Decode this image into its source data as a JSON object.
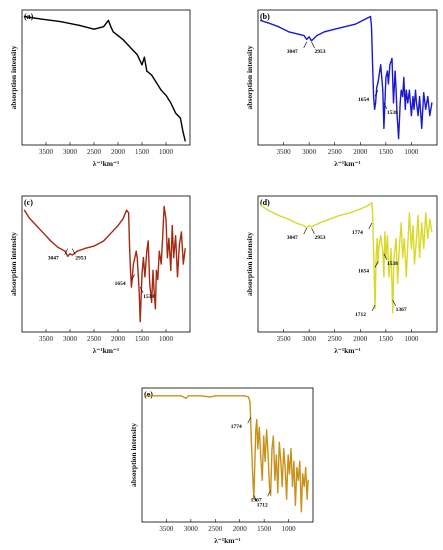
{
  "chart_data": [
    {
      "type": "line",
      "panel_label": "(a)",
      "xlabel": "λ⁻¹km⁻¹",
      "ylabel": "absorption intensity",
      "xlim": [
        4000,
        500
      ],
      "x_ticks": [
        "3500",
        "3000",
        "2500",
        "2000",
        "1500",
        "1000"
      ],
      "y_ticks": "none",
      "color": "#000000",
      "annotations": [],
      "x": [
        3950,
        3600,
        3200,
        2800,
        2500,
        2300,
        2200,
        2150,
        2100,
        2000,
        1900,
        1800,
        1700,
        1600,
        1500,
        1450,
        1400,
        1300,
        1200,
        1100,
        1000,
        900,
        800,
        700,
        650,
        600
      ],
      "y": [
        0.98,
        0.96,
        0.94,
        0.91,
        0.88,
        0.9,
        0.95,
        0.9,
        0.86,
        0.83,
        0.8,
        0.76,
        0.72,
        0.68,
        0.6,
        0.66,
        0.55,
        0.52,
        0.46,
        0.4,
        0.36,
        0.3,
        0.22,
        0.18,
        0.08,
        0.0
      ]
    },
    {
      "type": "line",
      "panel_label": "(b)",
      "xlabel": "λ⁻¹km⁻¹",
      "ylabel": "absorption intensity",
      "xlim": [
        4000,
        500
      ],
      "x_ticks": [
        "3500",
        "3000",
        "2500",
        "2000",
        "1500",
        "1000"
      ],
      "y_ticks": "none",
      "color": "#1a1acc",
      "annotations": [
        {
          "text": "3047",
          "x": 3047,
          "y": 0.78
        },
        {
          "text": "2953",
          "x": 2953,
          "y": 0.78
        },
        {
          "text": "1654",
          "x": 1654,
          "y": 0.4
        },
        {
          "text": "1538",
          "x": 1538,
          "y": 0.3
        }
      ],
      "x": [
        3950,
        3800,
        3600,
        3400,
        3200,
        3100,
        3047,
        3000,
        2953,
        2850,
        2700,
        2500,
        2300,
        2100,
        1950,
        1850,
        1800,
        1780,
        1760,
        1740,
        1720,
        1700,
        1680,
        1654,
        1620,
        1600,
        1560,
        1538,
        1500,
        1470,
        1450,
        1420,
        1380,
        1350,
        1320,
        1300,
        1280,
        1250,
        1220,
        1200,
        1170,
        1150,
        1120,
        1100,
        1070,
        1040,
        1000,
        970,
        950,
        920,
        900,
        870,
        840,
        800,
        760,
        720,
        680,
        640,
        600
      ],
      "y": [
        0.95,
        0.93,
        0.9,
        0.86,
        0.84,
        0.83,
        0.8,
        0.82,
        0.79,
        0.83,
        0.86,
        0.88,
        0.9,
        0.92,
        0.95,
        0.97,
        0.98,
        0.9,
        0.6,
        0.35,
        0.25,
        0.3,
        0.42,
        0.46,
        0.55,
        0.6,
        0.4,
        0.1,
        0.5,
        0.55,
        0.45,
        0.6,
        0.65,
        0.3,
        0.55,
        0.4,
        0.2,
        0.02,
        0.3,
        0.4,
        0.35,
        0.5,
        0.25,
        0.4,
        0.3,
        0.4,
        0.2,
        0.35,
        0.25,
        0.4,
        0.3,
        0.2,
        0.35,
        0.1,
        0.38,
        0.25,
        0.35,
        0.2,
        0.3
      ]
    },
    {
      "type": "line",
      "panel_label": "(c)",
      "xlabel": "λ⁻¹km⁻¹",
      "ylabel": "absorption intensity",
      "xlim": [
        4000,
        500
      ],
      "x_ticks": [
        "3500",
        "3000",
        "2500",
        "2000",
        "1500",
        "1000"
      ],
      "y_ticks": "none",
      "color": "#a52a12",
      "annotations": [
        {
          "text": "3047",
          "x": 3047,
          "y": 0.62
        },
        {
          "text": "2953",
          "x": 2953,
          "y": 0.62
        },
        {
          "text": "1654",
          "x": 1654,
          "y": 0.42
        },
        {
          "text": "1538",
          "x": 1538,
          "y": 0.32
        }
      ],
      "x": [
        3950,
        3850,
        3700,
        3550,
        3400,
        3250,
        3100,
        3047,
        3000,
        2953,
        2850,
        2700,
        2500,
        2300,
        2150,
        2000,
        1900,
        1820,
        1780,
        1760,
        1740,
        1720,
        1700,
        1680,
        1654,
        1620,
        1600,
        1560,
        1538,
        1500,
        1470,
        1440,
        1400,
        1370,
        1340,
        1300,
        1270,
        1250,
        1220,
        1200,
        1170,
        1140,
        1100,
        1070,
        1040,
        1000,
        970,
        940,
        900,
        870,
        840,
        800,
        760,
        720,
        680,
        640,
        600
      ],
      "y": [
        0.92,
        0.86,
        0.8,
        0.74,
        0.68,
        0.63,
        0.6,
        0.56,
        0.58,
        0.57,
        0.6,
        0.62,
        0.64,
        0.68,
        0.74,
        0.8,
        0.85,
        0.92,
        0.9,
        0.65,
        0.45,
        0.32,
        0.4,
        0.5,
        0.54,
        0.6,
        0.55,
        0.3,
        0.05,
        0.42,
        0.55,
        0.4,
        0.6,
        0.68,
        0.35,
        0.2,
        0.45,
        0.3,
        0.15,
        0.45,
        0.38,
        0.6,
        0.5,
        0.7,
        0.95,
        0.85,
        0.55,
        0.7,
        0.45,
        0.8,
        0.55,
        0.72,
        0.4,
        0.65,
        0.75,
        0.5,
        0.62
      ]
    },
    {
      "type": "line",
      "panel_label": "(d)",
      "xlabel": "λ⁻¹km⁻¹",
      "ylabel": "absorption intensity",
      "xlim": [
        4000,
        500
      ],
      "x_ticks": [
        "3500",
        "3000",
        "2500",
        "2000",
        "1500",
        "1000"
      ],
      "y_ticks": "none",
      "color": "#d9d92a",
      "annotations": [
        {
          "text": "3047",
          "x": 3047,
          "y": 0.78
        },
        {
          "text": "2953",
          "x": 2953,
          "y": 0.78
        },
        {
          "text": "1774",
          "x": 1774,
          "y": 0.82
        },
        {
          "text": "1538",
          "x": 1538,
          "y": 0.58
        },
        {
          "text": "1654",
          "x": 1654,
          "y": 0.52
        },
        {
          "text": "1367",
          "x": 1367,
          "y": 0.22
        },
        {
          "text": "1712",
          "x": 1712,
          "y": 0.18
        }
      ],
      "x": [
        3950,
        3800,
        3600,
        3400,
        3250,
        3100,
        3047,
        3000,
        2953,
        2800,
        2600,
        2400,
        2200,
        2000,
        1880,
        1800,
        1774,
        1760,
        1740,
        1712,
        1690,
        1670,
        1654,
        1630,
        1600,
        1560,
        1538,
        1520,
        1500,
        1470,
        1440,
        1400,
        1367,
        1340,
        1300,
        1270,
        1240,
        1200,
        1170,
        1140,
        1100,
        1070,
        1040,
        1000,
        970,
        940,
        900,
        870,
        840,
        800,
        760,
        720,
        680,
        640,
        600
      ],
      "y": [
        0.96,
        0.92,
        0.88,
        0.85,
        0.82,
        0.8,
        0.78,
        0.8,
        0.79,
        0.82,
        0.85,
        0.88,
        0.9,
        0.93,
        0.95,
        0.97,
        0.98,
        0.9,
        0.6,
        0.15,
        0.55,
        0.7,
        0.5,
        0.65,
        0.72,
        0.6,
        0.4,
        0.75,
        0.55,
        0.72,
        0.4,
        0.62,
        0.12,
        0.55,
        0.7,
        0.35,
        0.62,
        0.82,
        0.55,
        0.7,
        0.4,
        0.65,
        0.9,
        0.62,
        0.8,
        0.5,
        0.7,
        0.88,
        0.55,
        0.82,
        0.62,
        0.9,
        0.7,
        0.85,
        0.75
      ]
    },
    {
      "type": "line",
      "panel_label": "(e)",
      "xlabel": "λ⁻¹km⁻¹",
      "ylabel": "absorption intensity",
      "xlim": [
        4000,
        500
      ],
      "x_ticks": [
        "3500",
        "3000",
        "2500",
        "2000",
        "1500",
        "1000"
      ],
      "y_ticks": "none",
      "color": "#c8911a",
      "annotations": [
        {
          "text": "1774",
          "x": 1774,
          "y": 0.8
        },
        {
          "text": "1712",
          "x": 1712,
          "y": 0.18
        },
        {
          "text": "1367",
          "x": 1367,
          "y": 0.22
        }
      ],
      "x": [
        3950,
        3700,
        3400,
        3200,
        3100,
        3050,
        3000,
        2800,
        2600,
        2500,
        2400,
        2200,
        2000,
        1900,
        1820,
        1790,
        1774,
        1760,
        1740,
        1712,
        1690,
        1670,
        1650,
        1630,
        1600,
        1570,
        1540,
        1510,
        1480,
        1450,
        1420,
        1390,
        1367,
        1340,
        1310,
        1280,
        1250,
        1220,
        1190,
        1160,
        1130,
        1100,
        1070,
        1040,
        1010,
        980,
        950,
        920,
        890,
        860,
        830,
        800,
        770,
        740,
        710,
        680,
        650,
        620,
        600
      ],
      "y": [
        0.97,
        0.97,
        0.97,
        0.97,
        0.95,
        0.97,
        0.97,
        0.97,
        0.96,
        0.97,
        0.97,
        0.97,
        0.97,
        0.97,
        0.96,
        0.92,
        0.75,
        0.6,
        0.4,
        0.15,
        0.45,
        0.7,
        0.78,
        0.55,
        0.72,
        0.5,
        0.3,
        0.65,
        0.45,
        0.7,
        0.5,
        0.25,
        0.18,
        0.55,
        0.65,
        0.3,
        0.5,
        0.2,
        0.6,
        0.45,
        0.25,
        0.55,
        0.4,
        0.15,
        0.5,
        0.35,
        0.55,
        0.25,
        0.45,
        0.1,
        0.4,
        0.3,
        0.45,
        0.05,
        0.35,
        0.25,
        0.4,
        0.15,
        0.3
      ]
    }
  ]
}
